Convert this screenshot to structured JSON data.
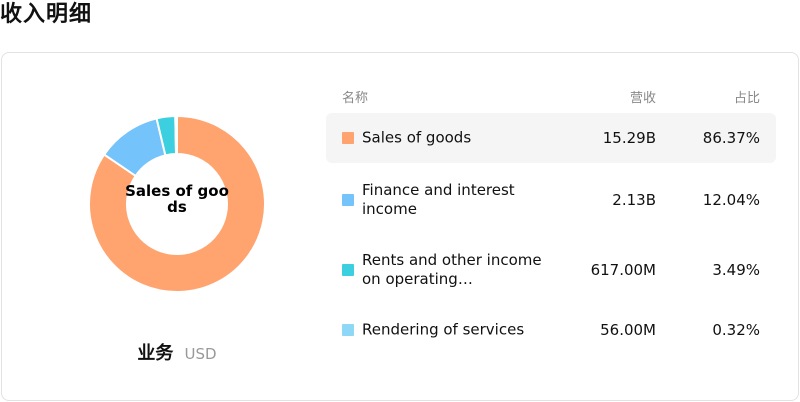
{
  "title": "收入明细",
  "table": {
    "headers": {
      "name": "名称",
      "revenue": "营收",
      "share": "占比"
    },
    "rows": [
      {
        "name": "Sales of goods",
        "revenue": "15.29B",
        "share": "86.37%",
        "color": "#FFA36F"
      },
      {
        "name": "Finance and interest income",
        "revenue": "2.13B",
        "share": "12.04%",
        "color": "#74C3FA"
      },
      {
        "name": "Rents and other income on operating…",
        "revenue": "617.00M",
        "share": "3.49%",
        "color": "#3CCFDF"
      },
      {
        "name": "Rendering of services",
        "revenue": "56.00M",
        "share": "0.32%",
        "color": "#8ED7F7"
      }
    ]
  },
  "chart_data": {
    "type": "pie",
    "labels": [
      "Sales of goods",
      "Finance and interest income",
      "Rents and other income on operating…",
      "Rendering of services"
    ],
    "values": [
      86.37,
      12.04,
      3.49,
      0.32
    ],
    "colors": [
      "#FFA36F",
      "#74C3FA",
      "#3CCFDF",
      "#8ED7F7"
    ],
    "center_label": "Sales of goods",
    "caption": "业务",
    "unit": "USD"
  }
}
